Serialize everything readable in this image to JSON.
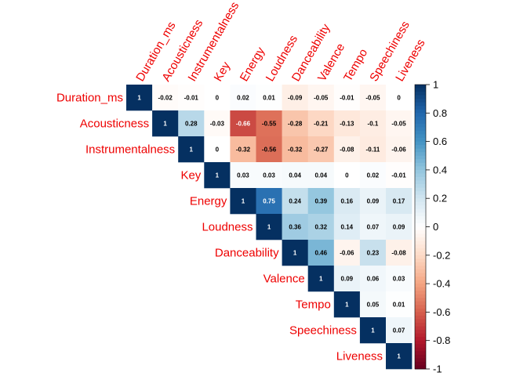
{
  "chart_data": {
    "type": "heatmap",
    "title": "",
    "layout": "upper-triangle correlation matrix",
    "variables": [
      "Duration_ms",
      "Acousticness",
      "Instrumentalness",
      "Key",
      "Energy",
      "Loudness",
      "Danceability",
      "Valence",
      "Tempo",
      "Speechiness",
      "Liveness"
    ],
    "matrix": [
      [
        "1",
        "-0.02",
        "-0.01",
        "0",
        "0.02",
        "0.01",
        "-0.09",
        "-0.05",
        "-0.01",
        "-0.05",
        "0"
      ],
      [
        null,
        "1",
        "0.28",
        "-0.03",
        "-0.66",
        "-0.55",
        "-0.28",
        "-0.21",
        "-0.13",
        "-0.1",
        "-0.05"
      ],
      [
        null,
        null,
        "1",
        "0",
        "-0.32",
        "-0.56",
        "-0.32",
        "-0.27",
        "-0.08",
        "-0.11",
        "-0.06"
      ],
      [
        null,
        null,
        null,
        "1",
        "0.03",
        "0.03",
        "0.04",
        "0.04",
        "0",
        "0.02",
        "-0.01"
      ],
      [
        null,
        null,
        null,
        null,
        "1",
        "0.75",
        "0.24",
        "0.39",
        "0.16",
        "0.09",
        "0.17"
      ],
      [
        null,
        null,
        null,
        null,
        null,
        "1",
        "0.36",
        "0.32",
        "0.14",
        "0.07",
        "0.09"
      ],
      [
        null,
        null,
        null,
        null,
        null,
        null,
        "1",
        "0.46",
        "-0.06",
        "0.23",
        "-0.08"
      ],
      [
        null,
        null,
        null,
        null,
        null,
        null,
        null,
        "1",
        "0.09",
        "0.06",
        "0.03"
      ],
      [
        null,
        null,
        null,
        null,
        null,
        null,
        null,
        null,
        "1",
        "0.05",
        "0.01"
      ],
      [
        null,
        null,
        null,
        null,
        null,
        null,
        null,
        null,
        null,
        "1",
        "0.07"
      ],
      [
        null,
        null,
        null,
        null,
        null,
        null,
        null,
        null,
        null,
        null,
        "1"
      ]
    ],
    "colorbar": {
      "range": [
        -1,
        1
      ],
      "ticks": [
        "1",
        "0.8",
        "0.6",
        "0.4",
        "0.2",
        "0",
        "-0.2",
        "-0.4",
        "-0.6",
        "-0.8",
        "-1"
      ]
    },
    "colors": {
      "label": "#ee0000",
      "negative_end": "#67001f",
      "positive_end": "#053061",
      "neutral": "#ffffff"
    }
  }
}
